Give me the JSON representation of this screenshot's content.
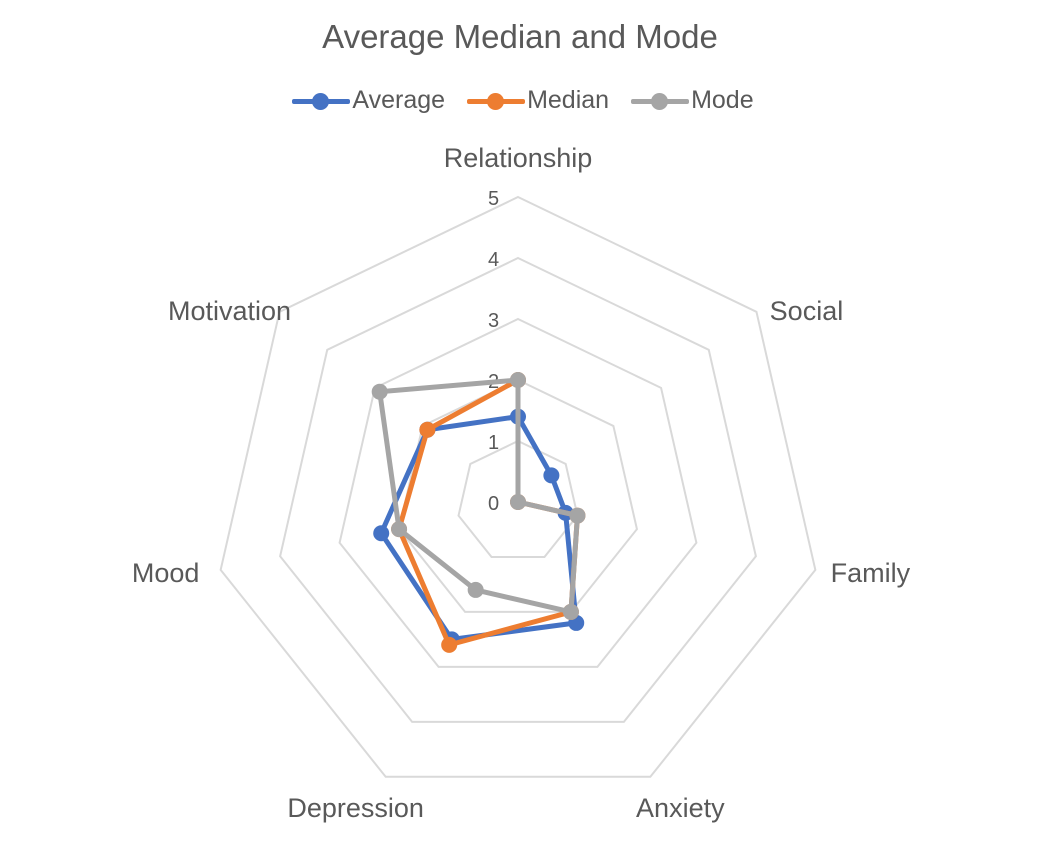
{
  "chart_data": {
    "type": "radar",
    "title": "Average Median and Mode",
    "categories": [
      "Relationship",
      "Social",
      "Family",
      "Anxiety",
      "Depression",
      "Mood",
      "Motivation"
    ],
    "radial_ticks": [
      "0",
      "1",
      "2",
      "3",
      "4",
      "5"
    ],
    "rlim": [
      0,
      5
    ],
    "grid": true,
    "legend_position": "top",
    "series": [
      {
        "name": "Average",
        "color": "#4472C4",
        "values": [
          1.4,
          0.7,
          0.8,
          2.2,
          2.5,
          2.3,
          1.9
        ]
      },
      {
        "name": "Median",
        "color": "#ED7D31",
        "values": [
          2.0,
          0.0,
          1.0,
          2.0,
          2.6,
          2.0,
          1.9
        ]
      },
      {
        "name": "Mode",
        "color": "#A5A5A5",
        "values": [
          2.0,
          0.0,
          1.0,
          2.0,
          1.6,
          2.0,
          2.9
        ]
      }
    ]
  }
}
